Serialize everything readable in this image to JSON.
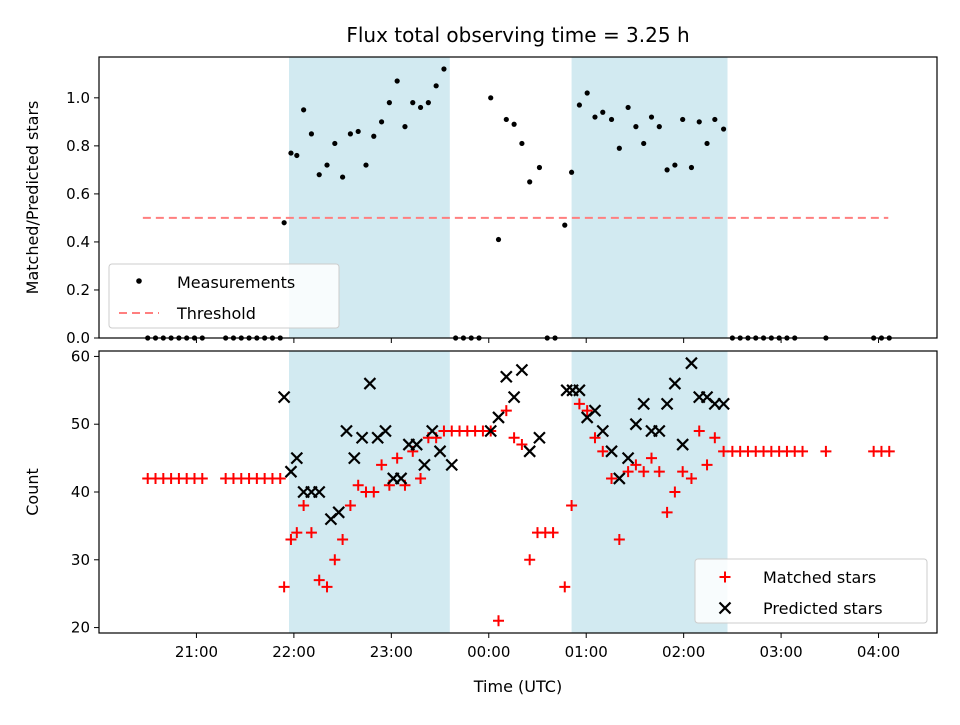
{
  "chart_data": {
    "type": "scatter",
    "title": "Flux total observing time = 3.25 h",
    "xlabel": "Time (UTC)",
    "x_unit": "hours since 00:00 UTC",
    "xlim": [
      -4.0,
      4.6
    ],
    "xticks": [
      {
        "value": -3,
        "label": "21:00"
      },
      {
        "value": -2,
        "label": "22:00"
      },
      {
        "value": -1,
        "label": "23:00"
      },
      {
        "value": 0,
        "label": "00:00"
      },
      {
        "value": 1,
        "label": "01:00"
      },
      {
        "value": 2,
        "label": "02:00"
      },
      {
        "value": 3,
        "label": "03:00"
      },
      {
        "value": 4,
        "label": "04:00"
      }
    ],
    "shaded_intervals": [
      [
        -2.05,
        -0.4
      ],
      [
        0.85,
        2.45
      ]
    ],
    "shade_color": "#add8e6",
    "panels": [
      {
        "id": "ratio",
        "ylabel": "Matched/Predicted stars",
        "ylim": [
          0.0,
          1.17
        ],
        "yticks": [
          {
            "value": 0.0,
            "label": "0.0"
          },
          {
            "value": 0.2,
            "label": "0.2"
          },
          {
            "value": 0.4,
            "label": "0.4"
          },
          {
            "value": 0.6,
            "label": "0.6"
          },
          {
            "value": 0.8,
            "label": "0.8"
          },
          {
            "value": 1.0,
            "label": "1.0"
          }
        ],
        "threshold": {
          "name": "Threshold",
          "value": 0.5,
          "x_range": [
            -3.55,
            4.1
          ],
          "color": "#ff7f7f"
        },
        "legend": {
          "position": "lower-left",
          "entries": [
            "Measurements",
            "Threshold"
          ]
        },
        "series": [
          {
            "name": "Measurements",
            "marker": "dot",
            "color": "#000000",
            "points": [
              [
                -3.5,
                0.0
              ],
              [
                -3.42,
                0.0
              ],
              [
                -3.34,
                0.0
              ],
              [
                -3.26,
                0.0
              ],
              [
                -3.18,
                0.0
              ],
              [
                -3.1,
                0.0
              ],
              [
                -3.02,
                0.0
              ],
              [
                -2.94,
                0.0
              ],
              [
                -2.7,
                0.0
              ],
              [
                -2.62,
                0.0
              ],
              [
                -2.54,
                0.0
              ],
              [
                -2.46,
                0.0
              ],
              [
                -2.38,
                0.0
              ],
              [
                -2.3,
                0.0
              ],
              [
                -2.22,
                0.0
              ],
              [
                -2.14,
                0.0
              ],
              [
                -2.1,
                0.48
              ],
              [
                -2.03,
                0.77
              ],
              [
                -1.97,
                0.76
              ],
              [
                -1.9,
                0.95
              ],
              [
                -1.82,
                0.85
              ],
              [
                -1.74,
                0.68
              ],
              [
                -1.66,
                0.72
              ],
              [
                -1.58,
                0.81
              ],
              [
                -1.5,
                0.67
              ],
              [
                -1.42,
                0.85
              ],
              [
                -1.34,
                0.86
              ],
              [
                -1.26,
                0.72
              ],
              [
                -1.18,
                0.84
              ],
              [
                -1.1,
                0.9
              ],
              [
                -1.02,
                0.98
              ],
              [
                -0.94,
                1.07
              ],
              [
                -0.86,
                0.88
              ],
              [
                -0.78,
                0.98
              ],
              [
                -0.7,
                0.96
              ],
              [
                -0.62,
                0.98
              ],
              [
                -0.54,
                1.05
              ],
              [
                -0.46,
                1.12
              ],
              [
                -0.34,
                0.0
              ],
              [
                -0.26,
                0.0
              ],
              [
                -0.18,
                0.0
              ],
              [
                -0.1,
                0.0
              ],
              [
                0.02,
                1.0
              ],
              [
                0.1,
                0.41
              ],
              [
                0.18,
                0.91
              ],
              [
                0.26,
                0.89
              ],
              [
                0.34,
                0.81
              ],
              [
                0.42,
                0.65
              ],
              [
                0.52,
                0.71
              ],
              [
                0.6,
                0.0
              ],
              [
                0.68,
                0.0
              ],
              [
                0.78,
                0.47
              ],
              [
                0.85,
                0.69
              ],
              [
                0.93,
                0.97
              ],
              [
                1.01,
                1.02
              ],
              [
                1.09,
                0.92
              ],
              [
                1.17,
                0.94
              ],
              [
                1.26,
                0.91
              ],
              [
                1.34,
                0.79
              ],
              [
                1.43,
                0.96
              ],
              [
                1.51,
                0.88
              ],
              [
                1.59,
                0.81
              ],
              [
                1.67,
                0.92
              ],
              [
                1.75,
                0.88
              ],
              [
                1.83,
                0.7
              ],
              [
                1.91,
                0.72
              ],
              [
                1.99,
                0.91
              ],
              [
                2.08,
                0.71
              ],
              [
                2.16,
                0.9
              ],
              [
                2.24,
                0.81
              ],
              [
                2.32,
                0.91
              ],
              [
                2.41,
                0.87
              ],
              [
                2.5,
                0.0
              ],
              [
                2.58,
                0.0
              ],
              [
                2.66,
                0.0
              ],
              [
                2.74,
                0.0
              ],
              [
                2.82,
                0.0
              ],
              [
                2.9,
                0.0
              ],
              [
                2.98,
                0.0
              ],
              [
                3.06,
                0.0
              ],
              [
                3.14,
                0.0
              ],
              [
                3.46,
                0.0
              ],
              [
                3.95,
                0.0
              ],
              [
                4.03,
                0.0
              ],
              [
                4.11,
                0.0
              ]
            ]
          }
        ]
      },
      {
        "id": "count",
        "ylabel": "Count",
        "ylim": [
          19.2,
          60.8
        ],
        "yticks": [
          {
            "value": 20,
            "label": "20"
          },
          {
            "value": 30,
            "label": "30"
          },
          {
            "value": 40,
            "label": "40"
          },
          {
            "value": 50,
            "label": "50"
          },
          {
            "value": 60,
            "label": "60"
          }
        ],
        "legend": {
          "position": "lower-right",
          "entries": [
            "Matched stars",
            "Predicted stars"
          ]
        },
        "series": [
          {
            "name": "Matched stars",
            "marker": "plus",
            "color": "#ff0000",
            "points": [
              [
                -3.5,
                42
              ],
              [
                -3.42,
                42
              ],
              [
                -3.34,
                42
              ],
              [
                -3.26,
                42
              ],
              [
                -3.18,
                42
              ],
              [
                -3.1,
                42
              ],
              [
                -3.02,
                42
              ],
              [
                -2.94,
                42
              ],
              [
                -2.7,
                42
              ],
              [
                -2.62,
                42
              ],
              [
                -2.54,
                42
              ],
              [
                -2.46,
                42
              ],
              [
                -2.38,
                42
              ],
              [
                -2.3,
                42
              ],
              [
                -2.22,
                42
              ],
              [
                -2.14,
                42
              ],
              [
                -2.1,
                26
              ],
              [
                -2.03,
                33
              ],
              [
                -1.97,
                34
              ],
              [
                -1.9,
                38
              ],
              [
                -1.82,
                34
              ],
              [
                -1.74,
                27
              ],
              [
                -1.66,
                26
              ],
              [
                -1.58,
                30
              ],
              [
                -1.5,
                33
              ],
              [
                -1.42,
                38
              ],
              [
                -1.34,
                41
              ],
              [
                -1.26,
                40
              ],
              [
                -1.18,
                40
              ],
              [
                -1.1,
                44
              ],
              [
                -1.02,
                41
              ],
              [
                -0.94,
                45
              ],
              [
                -0.86,
                41
              ],
              [
                -0.78,
                46
              ],
              [
                -0.7,
                42
              ],
              [
                -0.62,
                48
              ],
              [
                -0.54,
                48
              ],
              [
                -0.46,
                49
              ],
              [
                -0.38,
                49
              ],
              [
                -0.3,
                49
              ],
              [
                -0.22,
                49
              ],
              [
                -0.14,
                49
              ],
              [
                -0.06,
                49
              ],
              [
                0.02,
                49
              ],
              [
                0.1,
                21
              ],
              [
                0.18,
                52
              ],
              [
                0.26,
                48
              ],
              [
                0.34,
                47
              ],
              [
                0.42,
                30
              ],
              [
                0.5,
                34
              ],
              [
                0.58,
                34
              ],
              [
                0.66,
                34
              ],
              [
                0.78,
                26
              ],
              [
                0.85,
                38
              ],
              [
                0.93,
                53
              ],
              [
                1.01,
                52
              ],
              [
                1.09,
                48
              ],
              [
                1.17,
                46
              ],
              [
                1.26,
                42
              ],
              [
                1.34,
                33
              ],
              [
                1.43,
                43
              ],
              [
                1.51,
                44
              ],
              [
                1.59,
                43
              ],
              [
                1.67,
                45
              ],
              [
                1.75,
                43
              ],
              [
                1.83,
                37
              ],
              [
                1.91,
                40
              ],
              [
                1.99,
                43
              ],
              [
                2.08,
                42
              ],
              [
                2.16,
                49
              ],
              [
                2.24,
                44
              ],
              [
                2.32,
                48
              ],
              [
                2.41,
                46
              ],
              [
                2.5,
                46
              ],
              [
                2.58,
                46
              ],
              [
                2.66,
                46
              ],
              [
                2.74,
                46
              ],
              [
                2.82,
                46
              ],
              [
                2.9,
                46
              ],
              [
                2.98,
                46
              ],
              [
                3.06,
                46
              ],
              [
                3.14,
                46
              ],
              [
                3.22,
                46
              ],
              [
                3.46,
                46
              ],
              [
                3.95,
                46
              ],
              [
                4.03,
                46
              ],
              [
                4.11,
                46
              ]
            ]
          },
          {
            "name": "Predicted stars",
            "marker": "x",
            "color": "#000000",
            "points": [
              [
                -2.1,
                54
              ],
              [
                -2.03,
                43
              ],
              [
                -1.97,
                45
              ],
              [
                -1.9,
                40
              ],
              [
                -1.82,
                40
              ],
              [
                -1.74,
                40
              ],
              [
                -1.62,
                36
              ],
              [
                -1.54,
                37
              ],
              [
                -1.46,
                49
              ],
              [
                -1.38,
                45
              ],
              [
                -1.3,
                48
              ],
              [
                -1.22,
                56
              ],
              [
                -1.14,
                48
              ],
              [
                -1.06,
                49
              ],
              [
                -0.98,
                42
              ],
              [
                -0.9,
                42
              ],
              [
                -0.82,
                47
              ],
              [
                -0.74,
                47
              ],
              [
                -0.66,
                44
              ],
              [
                -0.58,
                49
              ],
              [
                -0.5,
                46
              ],
              [
                -0.38,
                44
              ],
              [
                0.02,
                49
              ],
              [
                0.1,
                51
              ],
              [
                0.18,
                57
              ],
              [
                0.26,
                54
              ],
              [
                0.34,
                58
              ],
              [
                0.42,
                46
              ],
              [
                0.52,
                48
              ],
              [
                0.8,
                55
              ],
              [
                0.86,
                55
              ],
              [
                0.93,
                55
              ],
              [
                1.01,
                51
              ],
              [
                1.09,
                52
              ],
              [
                1.17,
                49
              ],
              [
                1.26,
                46
              ],
              [
                1.34,
                42
              ],
              [
                1.43,
                45
              ],
              [
                1.51,
                50
              ],
              [
                1.59,
                53
              ],
              [
                1.67,
                49
              ],
              [
                1.75,
                49
              ],
              [
                1.83,
                53
              ],
              [
                1.91,
                56
              ],
              [
                1.99,
                47
              ],
              [
                2.08,
                59
              ],
              [
                2.16,
                54
              ],
              [
                2.24,
                54
              ],
              [
                2.32,
                53
              ],
              [
                2.41,
                53
              ]
            ]
          }
        ]
      }
    ]
  }
}
